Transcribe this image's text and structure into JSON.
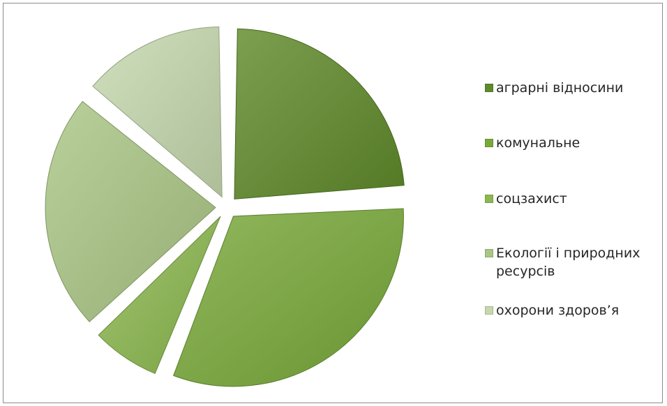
{
  "chart_data": {
    "type": "pie",
    "title": "",
    "exploded": true,
    "start_angle_deg": 0,
    "direction": "clockwise",
    "categories": [
      "аграрні відносини",
      "комунальне",
      "соцзахист",
      "Екології і природних ресурсів",
      "охорони здоров’я"
    ],
    "values": [
      24,
      32,
      7,
      23,
      14
    ],
    "colors": [
      "#5f8a2a",
      "#79a93a",
      "#8cb84f",
      "#aac685",
      "#c6d8ae"
    ],
    "legend_position": "right"
  },
  "legend": {
    "items": [
      {
        "label": "аграрні відносини",
        "color": "#5f8a2a"
      },
      {
        "label": "комунальне",
        "color": "#79a93a"
      },
      {
        "label": "соцзахист",
        "color": "#8cb84f"
      },
      {
        "label": "Екології і природних ресурсів",
        "color": "#aac685"
      },
      {
        "label": "охорони здоров’я",
        "color": "#c6d8ae"
      }
    ]
  }
}
